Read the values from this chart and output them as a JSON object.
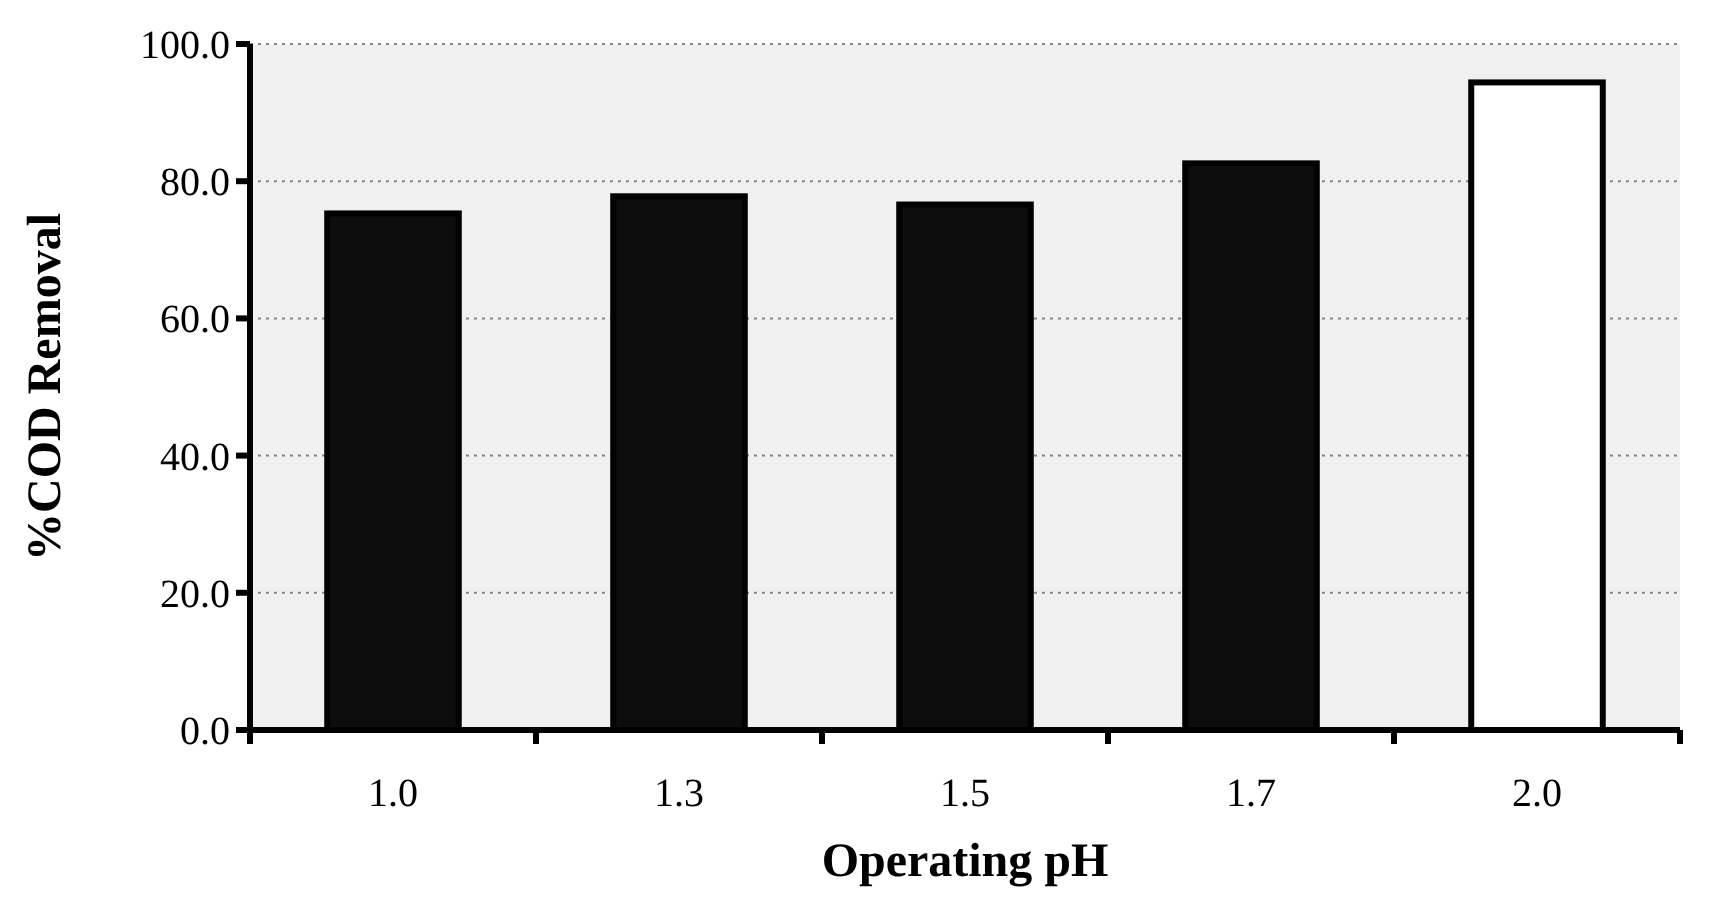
{
  "chart_data": {
    "type": "bar",
    "xlabel": "Operating pH",
    "ylabel": "%COD Removal",
    "categories": [
      "1.0",
      "1.3",
      "1.5",
      "1.7",
      "2.0"
    ],
    "values": [
      75.3,
      77.8,
      76.6,
      82.6,
      94.4
    ],
    "colors": [
      "#0d0d0d",
      "#0d0d0d",
      "#0d0d0d",
      "#0d0d0d",
      "#ffffff"
    ],
    "ylim": [
      0,
      100
    ],
    "yticks": [
      {
        "value": 0,
        "label": "0.0"
      },
      {
        "value": 20,
        "label": "20.0"
      },
      {
        "value": 40,
        "label": "40.0"
      },
      {
        "value": 60,
        "label": "60.0"
      },
      {
        "value": 80,
        "label": "80.0"
      },
      {
        "value": 100,
        "label": "100.0"
      }
    ],
    "grid": "y"
  }
}
